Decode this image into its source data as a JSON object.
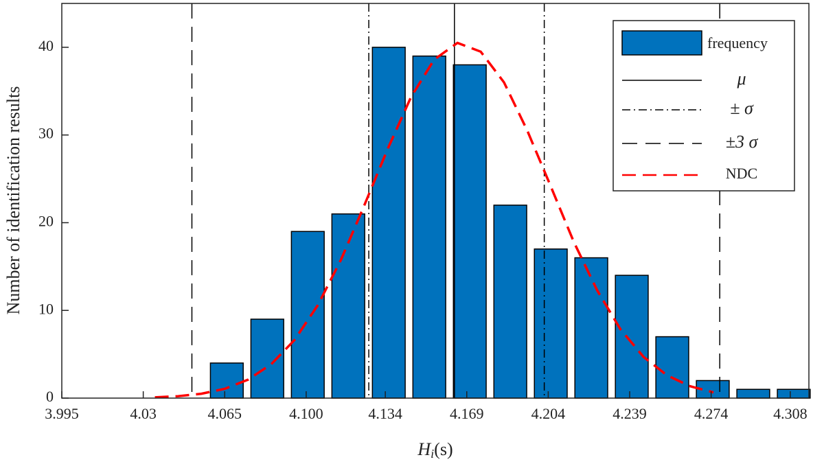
{
  "chart_data": {
    "type": "histogram",
    "ylabel": "Number of identification results",
    "xlabel": [
      "H",
      "i",
      "(s)"
    ],
    "series_name": "frequency",
    "color": "#0072bd",
    "bins": [
      4.0572,
      4.0746,
      4.092,
      4.1094,
      4.1268,
      4.1442,
      4.1616,
      4.179,
      4.1964,
      4.2138,
      4.2312,
      4.2486,
      4.266,
      4.2834,
      4.3008,
      4.3182
    ],
    "values": [
      4,
      9,
      19,
      21,
      40,
      39,
      38,
      22,
      17,
      16,
      14,
      7,
      2,
      1,
      1
    ],
    "lines": [
      {
        "name": "μ",
        "style": "solid",
        "color": "#000000",
        "values": [
          4.1637
        ]
      },
      {
        "name": "± σ",
        "style": "dashdot",
        "color": "#000000",
        "values": [
          4.1269,
          4.2023
        ]
      },
      {
        "name": "±3 σ",
        "style": "dashed",
        "color": "#000000",
        "values": [
          4.0509,
          4.2777
        ]
      }
    ],
    "curve": {
      "name": "NDC",
      "color": "#ff0000",
      "x": [
        4.035,
        4.045,
        4.055,
        4.065,
        4.075,
        4.085,
        4.095,
        4.105,
        4.115,
        4.125,
        4.135,
        4.145,
        4.155,
        4.165,
        4.175,
        4.185,
        4.195,
        4.205,
        4.215,
        4.225,
        4.235,
        4.245,
        4.255,
        4.265,
        4.275
      ],
      "values": [
        0.09,
        0.22,
        0.5,
        1.06,
        2.1,
        3.87,
        6.63,
        10.6,
        15.8,
        22.0,
        28.4,
        34.3,
        38.6,
        40.5,
        39.5,
        36.0,
        30.5,
        24.2,
        17.8,
        12.3,
        7.86,
        4.69,
        2.61,
        1.35,
        0.65
      ]
    },
    "xlim": [
      3.995,
      4.316
    ],
    "ylim": [
      0,
      45
    ],
    "xticks": [
      3.995,
      4.03,
      4.065,
      {
        "value": 4.1,
        "label": "4.100"
      },
      4.134,
      4.169,
      4.204,
      4.239,
      4.274,
      4.308
    ],
    "yticks": [
      0,
      10,
      20,
      30,
      40
    ],
    "legend": "upper right"
  }
}
